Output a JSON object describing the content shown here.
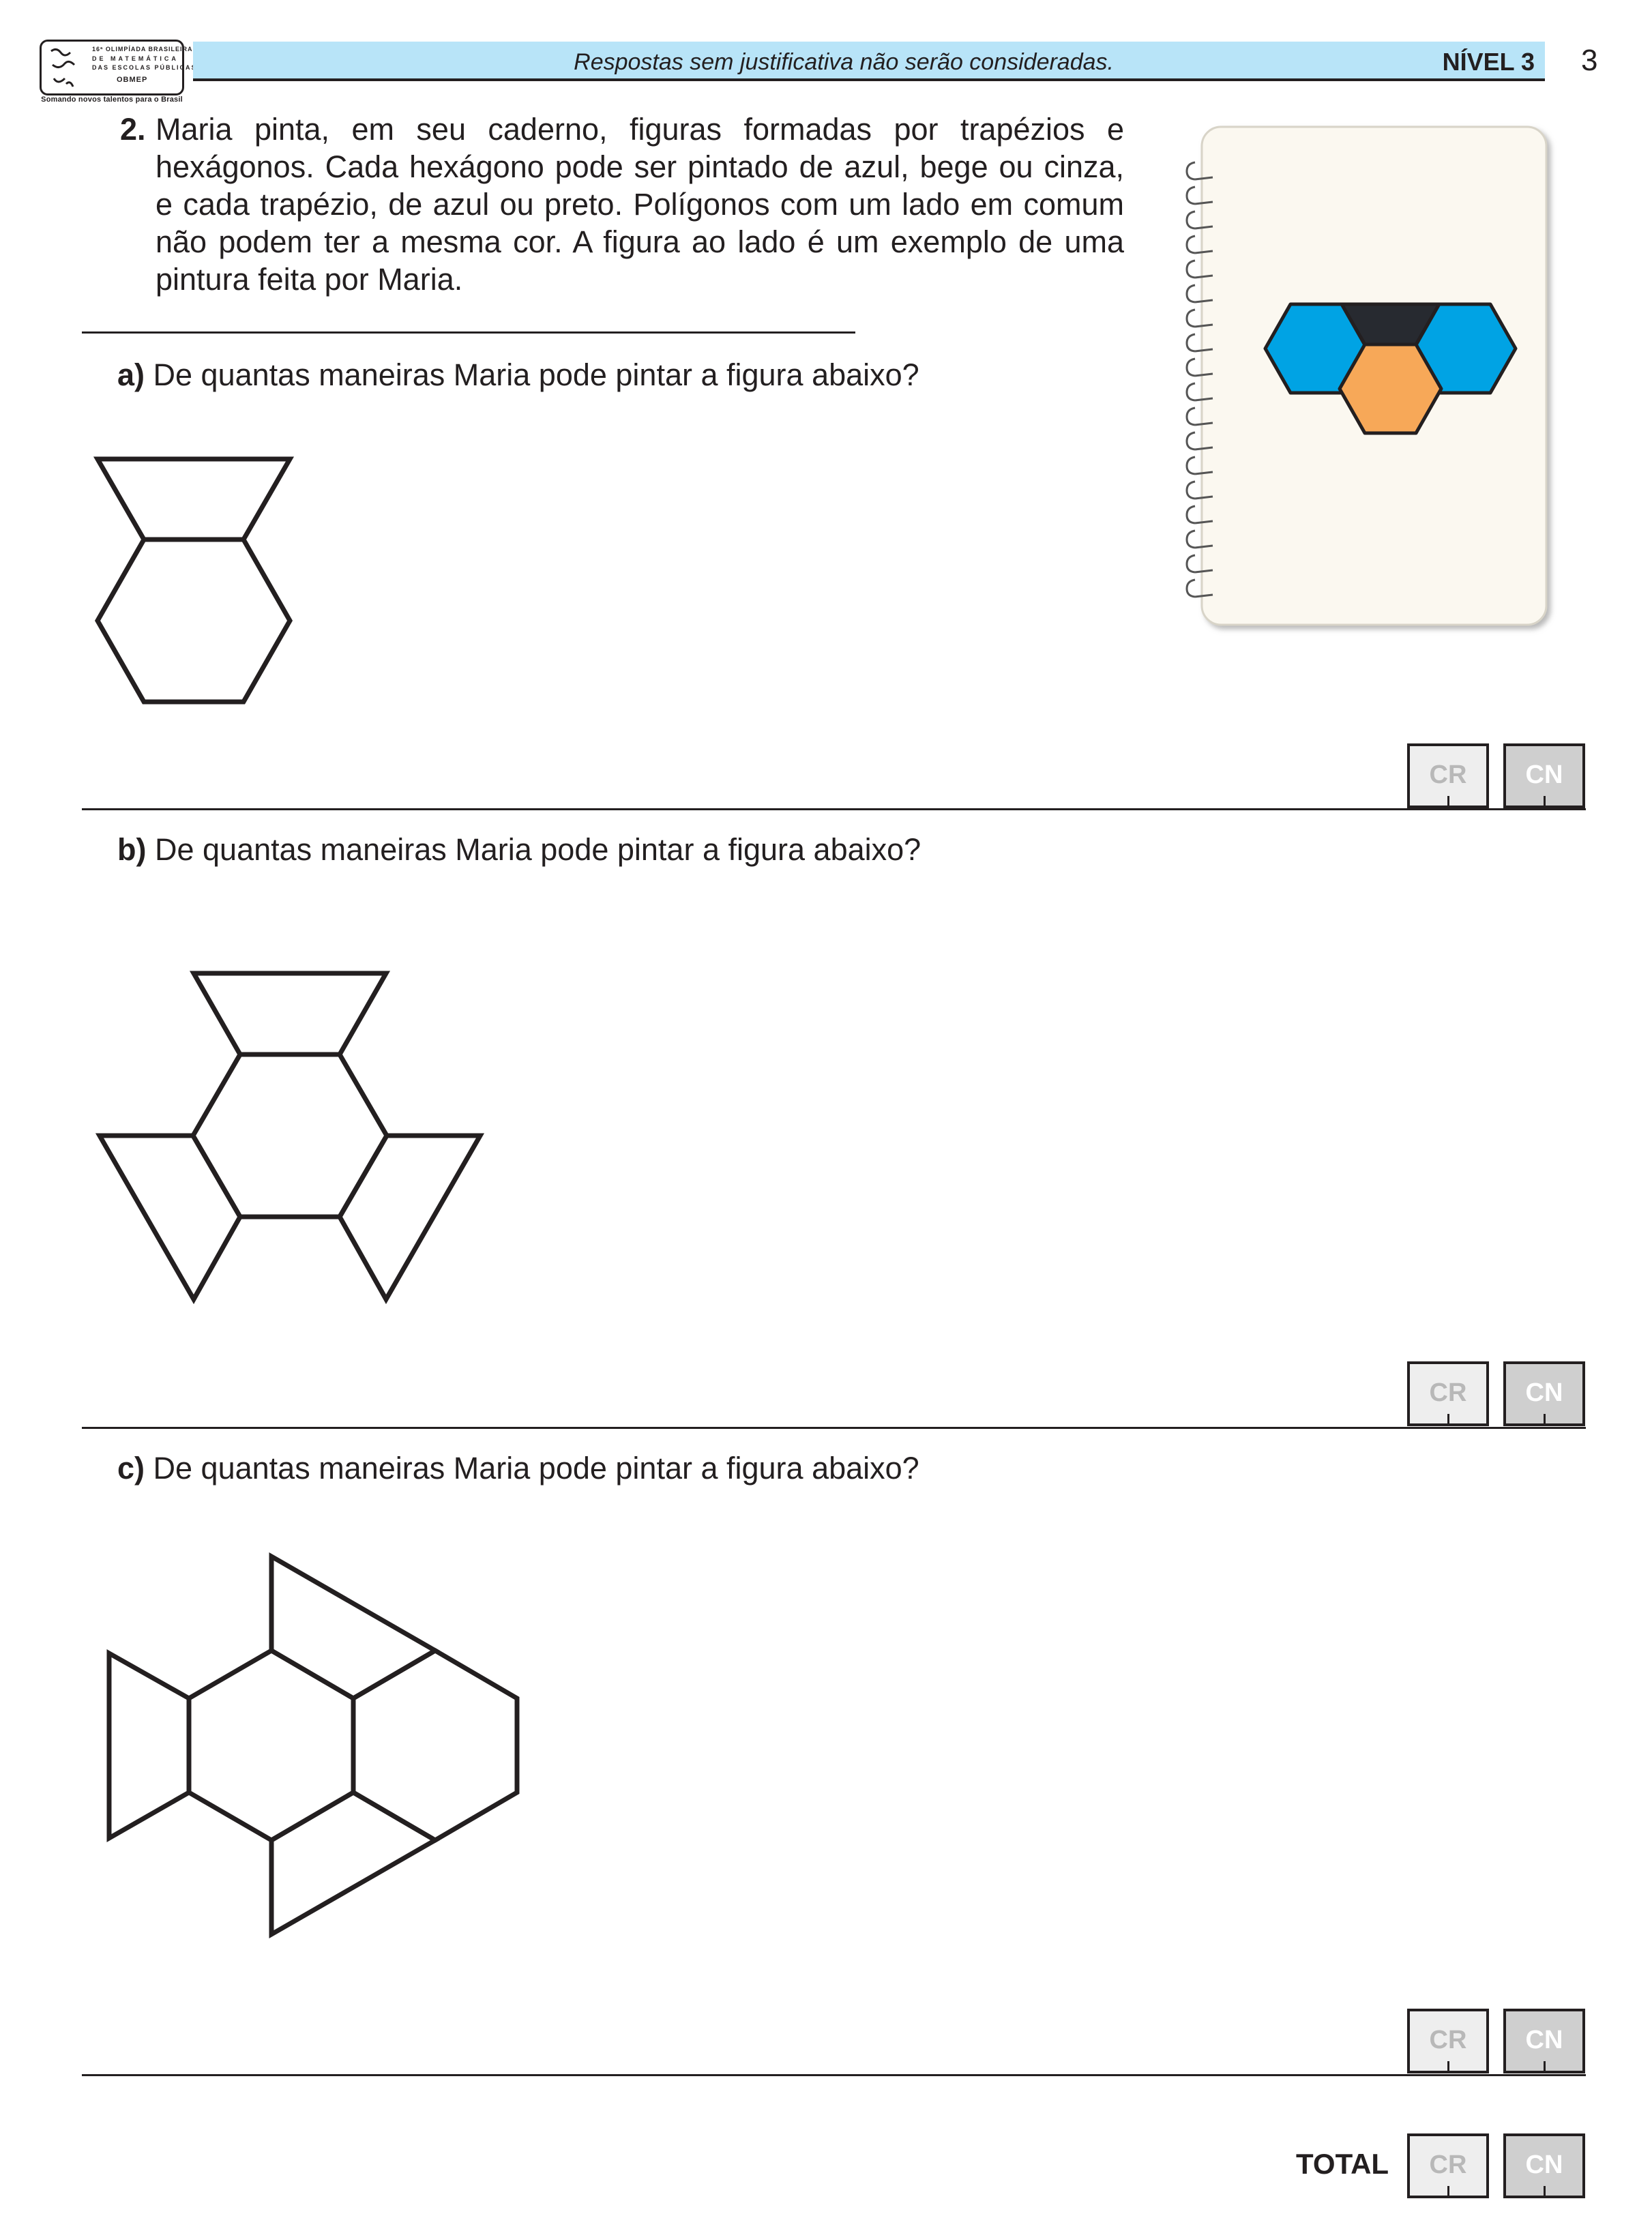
{
  "header": {
    "logo_lines": [
      "16ª OLIMPÍADA BRASILEIRA",
      "DE MATEMÁTICA",
      "DAS ESCOLAS PÚBLICAS",
      "OBMEP"
    ],
    "logo_tagline": "Somando novos talentos para o Brasil",
    "note": "Respostas sem justificativa não serão consideradas.",
    "level": "NÍVEL 3",
    "page_number": "3",
    "band_color": "#b8e4f8"
  },
  "question": {
    "number": "2.",
    "text": "Maria pinta, em seu caderno, figuras formadas por trapézios e hexágonos. Cada hexágono pode ser pintado de azul, bege ou cinza, e cada trapézio, de azul ou preto. Polígonos com um lado em comum não podem ter a mesma cor. A figura ao lado é um exemplo de uma pintura feita por Maria."
  },
  "example_colors": {
    "blue": "#00a3e4",
    "black": "#272a30",
    "beige": "#f7a858",
    "notebook": "#fbf8f0"
  },
  "parts": [
    {
      "letter": "a)",
      "text": "De quantas maneiras Maria pode pintar a figura abaixo?"
    },
    {
      "letter": "b)",
      "text": "De quantas maneiras Maria pode pintar a figura abaixo?"
    },
    {
      "letter": "c)",
      "text": "De quantas maneiras Maria pode pintar a figura abaixo?"
    }
  ],
  "grading": {
    "cr_label": "CR",
    "cn_label": "CN",
    "total_label": "TOTAL"
  }
}
